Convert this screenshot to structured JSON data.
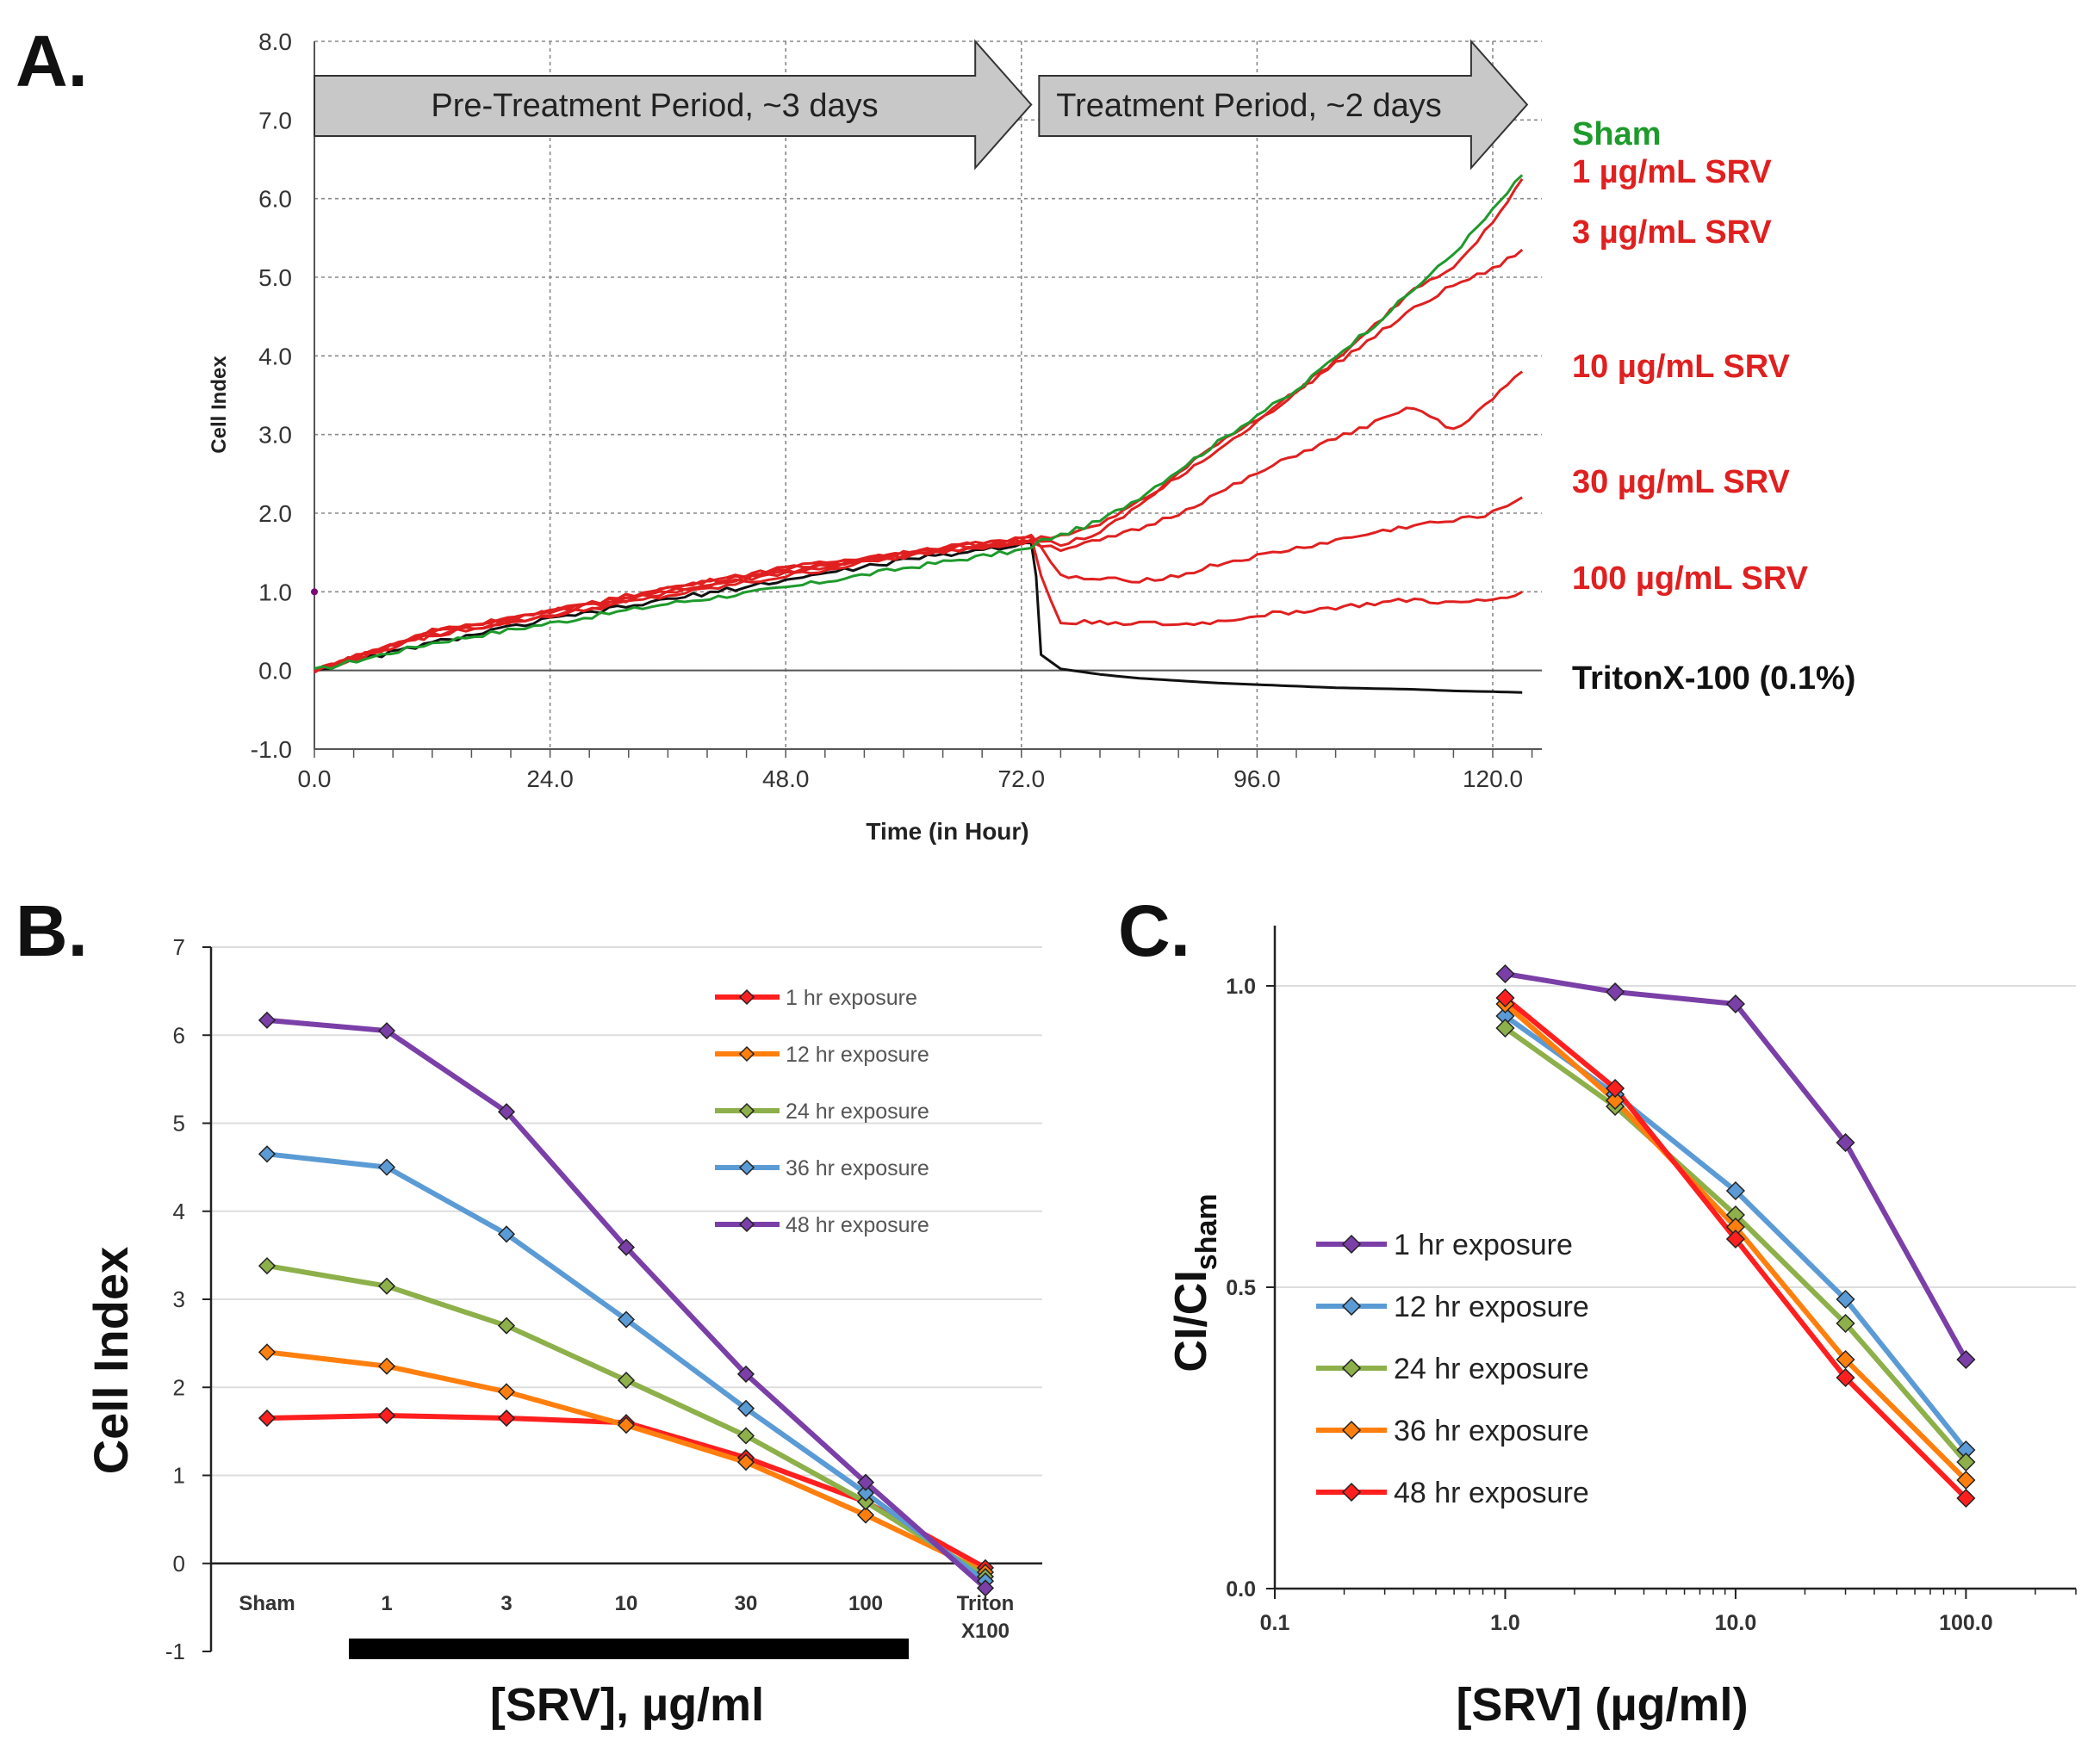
{
  "panels": {
    "a": "A.",
    "b": "B.",
    "c": "C."
  },
  "colors": {
    "sham": "#1e9a2c",
    "srv": "#e02020",
    "triton": "#111111",
    "arrow_fill": "#c8c8c8",
    "grid": "#888888",
    "s1hr": "#ff1f1f",
    "s12hr": "#ff7f0e",
    "s24hr": "#8db04a",
    "s36hr": "#5b9bd5",
    "s48hr": "#7b3fa8"
  },
  "chart_data": [
    {
      "id": "A",
      "type": "line",
      "xlabel": "Time (in Hour)",
      "ylabel": "Cell Index",
      "xlim": [
        0,
        125
      ],
      "ylim": [
        -1,
        8
      ],
      "xticks": [
        "0.0",
        "24.0",
        "48.0",
        "72.0",
        "96.0",
        "120.0"
      ],
      "yticks": [
        "-1.0",
        "0.0",
        "1.0",
        "2.0",
        "3.0",
        "4.0",
        "5.0",
        "6.0",
        "7.0",
        "8.0"
      ],
      "annotations": {
        "pretreatment": "Pre-Treatment Period, ~3 days",
        "treatment": "Treatment Period, ~2 days"
      },
      "series": [
        {
          "name": "Sham",
          "label": "Sham",
          "color": "sham",
          "x": [
            0,
            12,
            24,
            36,
            48,
            60,
            73,
            74,
            76,
            80,
            84,
            88,
            92,
            96,
            100,
            104,
            108,
            112,
            116,
            120,
            123
          ],
          "y": [
            0,
            0.35,
            0.6,
            0.85,
            1.05,
            1.3,
            1.55,
            1.65,
            1.72,
            1.9,
            2.2,
            2.55,
            2.9,
            3.25,
            3.55,
            4.0,
            4.4,
            4.85,
            5.3,
            5.85,
            6.3
          ]
        },
        {
          "name": "1 µg/mL SRV",
          "label": "1 µg/mL SRV",
          "color": "srv",
          "x": [
            0,
            12,
            24,
            36,
            48,
            60,
            73,
            74,
            76,
            80,
            84,
            88,
            92,
            96,
            100,
            104,
            108,
            112,
            116,
            120,
            123
          ],
          "y": [
            0,
            0.5,
            0.75,
            1.0,
            1.25,
            1.45,
            1.65,
            1.7,
            1.72,
            1.85,
            2.15,
            2.45,
            2.8,
            3.15,
            3.55,
            3.95,
            4.4,
            4.85,
            5.1,
            5.7,
            6.25
          ]
        },
        {
          "name": "3 µg/mL SRV",
          "label": "3 µg/mL SRV",
          "color": "srv",
          "x": [
            0,
            12,
            24,
            36,
            48,
            60,
            73,
            74,
            76,
            80,
            84,
            88,
            92,
            96,
            100,
            104,
            108,
            112,
            116,
            120,
            123
          ],
          "y": [
            0,
            0.45,
            0.7,
            0.95,
            1.2,
            1.45,
            1.65,
            1.65,
            1.6,
            1.75,
            2.1,
            2.5,
            2.9,
            3.2,
            3.55,
            3.9,
            4.25,
            4.6,
            4.9,
            5.1,
            5.35
          ]
        },
        {
          "name": "10 µg/mL SRV",
          "label": "10 µg/mL SRV",
          "color": "srv",
          "x": [
            0,
            12,
            24,
            36,
            48,
            60,
            73,
            74,
            76,
            80,
            84,
            88,
            92,
            96,
            100,
            104,
            108,
            112,
            116,
            120,
            123
          ],
          "y": [
            0,
            0.5,
            0.75,
            1.05,
            1.3,
            1.5,
            1.65,
            1.6,
            1.55,
            1.65,
            1.8,
            2.0,
            2.25,
            2.5,
            2.75,
            2.95,
            3.15,
            3.35,
            3.05,
            3.45,
            3.8
          ]
        },
        {
          "name": "30 µg/mL SRV",
          "label": "30 µg/mL SRV",
          "color": "srv",
          "x": [
            0,
            12,
            24,
            36,
            48,
            60,
            73,
            74,
            76,
            80,
            84,
            88,
            92,
            96,
            100,
            104,
            108,
            112,
            116,
            120,
            123
          ],
          "y": [
            0,
            0.45,
            0.7,
            1.0,
            1.25,
            1.5,
            1.7,
            1.55,
            1.2,
            1.15,
            1.15,
            1.2,
            1.35,
            1.45,
            1.55,
            1.65,
            1.75,
            1.85,
            1.9,
            2.0,
            2.2
          ]
        },
        {
          "name": "100 µg/mL SRV",
          "label": "100 µg/mL SRV",
          "color": "srv",
          "x": [
            0,
            12,
            24,
            36,
            48,
            60,
            73,
            74,
            76,
            80,
            84,
            88,
            92,
            96,
            100,
            104,
            108,
            112,
            116,
            120,
            123
          ],
          "y": [
            0,
            0.5,
            0.75,
            1.05,
            1.3,
            1.5,
            1.7,
            1.2,
            0.6,
            0.62,
            0.6,
            0.58,
            0.62,
            0.7,
            0.75,
            0.8,
            0.85,
            0.9,
            0.85,
            0.9,
            1.0
          ]
        },
        {
          "name": "TritonX-100 (0.1%)",
          "label": "TritonX-100 (0.1%)",
          "color": "triton",
          "x": [
            0,
            12,
            24,
            36,
            48,
            60,
            73,
            73.5,
            74,
            76,
            80,
            84,
            88,
            92,
            96,
            100,
            104,
            108,
            112,
            116,
            120,
            123
          ],
          "y": [
            0,
            0.35,
            0.65,
            0.9,
            1.15,
            1.4,
            1.62,
            1.2,
            0.2,
            0.02,
            -0.05,
            -0.1,
            -0.13,
            -0.16,
            -0.18,
            -0.2,
            -0.22,
            -0.23,
            -0.24,
            -0.26,
            -0.27,
            -0.28
          ]
        }
      ]
    },
    {
      "id": "B",
      "type": "line",
      "xlabel": "[SRV], µg/ml",
      "ylabel": "Cell Index",
      "ylim": [
        -1,
        7
      ],
      "yticks": [
        "-1",
        "0",
        "1",
        "2",
        "3",
        "4",
        "5",
        "6",
        "7"
      ],
      "categories": [
        "Sham",
        "1",
        "3",
        "10",
        "30",
        "100",
        "Triton X100"
      ],
      "series": [
        {
          "name": "1 hr exposure",
          "color": "s1hr",
          "values": [
            1.65,
            1.68,
            1.65,
            1.6,
            1.2,
            0.7,
            -0.05
          ]
        },
        {
          "name": "12 hr exposure",
          "color": "s12hr",
          "values": [
            2.4,
            2.24,
            1.95,
            1.57,
            1.15,
            0.55,
            -0.1
          ]
        },
        {
          "name": "24 hr exposure",
          "color": "s24hr",
          "values": [
            3.38,
            3.15,
            2.7,
            2.08,
            1.45,
            0.7,
            -0.15
          ]
        },
        {
          "name": "36 hr exposure",
          "color": "s36hr",
          "values": [
            4.65,
            4.5,
            3.74,
            2.77,
            1.76,
            0.8,
            -0.2
          ]
        },
        {
          "name": "48 hr exposure",
          "color": "s48hr",
          "values": [
            6.17,
            6.05,
            5.13,
            3.59,
            2.15,
            0.92,
            -0.28
          ]
        }
      ]
    },
    {
      "id": "C",
      "type": "line",
      "xscale": "log",
      "xlabel": "[SRV] (µg/ml)",
      "ylabel_main": "CI/CI",
      "ylabel_sub": "sham",
      "xlim": [
        0.1,
        300
      ],
      "ylim": [
        0,
        1.1
      ],
      "xticks": [
        "0.1",
        "1.0",
        "10.0",
        "100.0"
      ],
      "yticks": [
        "0.0",
        "0.5",
        "1.0"
      ],
      "x": [
        1,
        3,
        10,
        30,
        100
      ],
      "series": [
        {
          "name": "1 hr exposure",
          "color": "s48hr",
          "values": [
            1.02,
            0.99,
            0.97,
            0.74,
            0.38
          ]
        },
        {
          "name": "12 hr exposure",
          "color": "s36hr",
          "values": [
            0.95,
            0.82,
            0.66,
            0.48,
            0.23
          ]
        },
        {
          "name": "24 hr exposure",
          "color": "s24hr",
          "values": [
            0.93,
            0.8,
            0.62,
            0.44,
            0.21
          ]
        },
        {
          "name": "36 hr exposure",
          "color": "s12hr",
          "values": [
            0.97,
            0.81,
            0.6,
            0.38,
            0.18
          ]
        },
        {
          "name": "48 hr exposure",
          "color": "s1hr",
          "values": [
            0.98,
            0.83,
            0.58,
            0.35,
            0.15
          ]
        }
      ]
    }
  ]
}
